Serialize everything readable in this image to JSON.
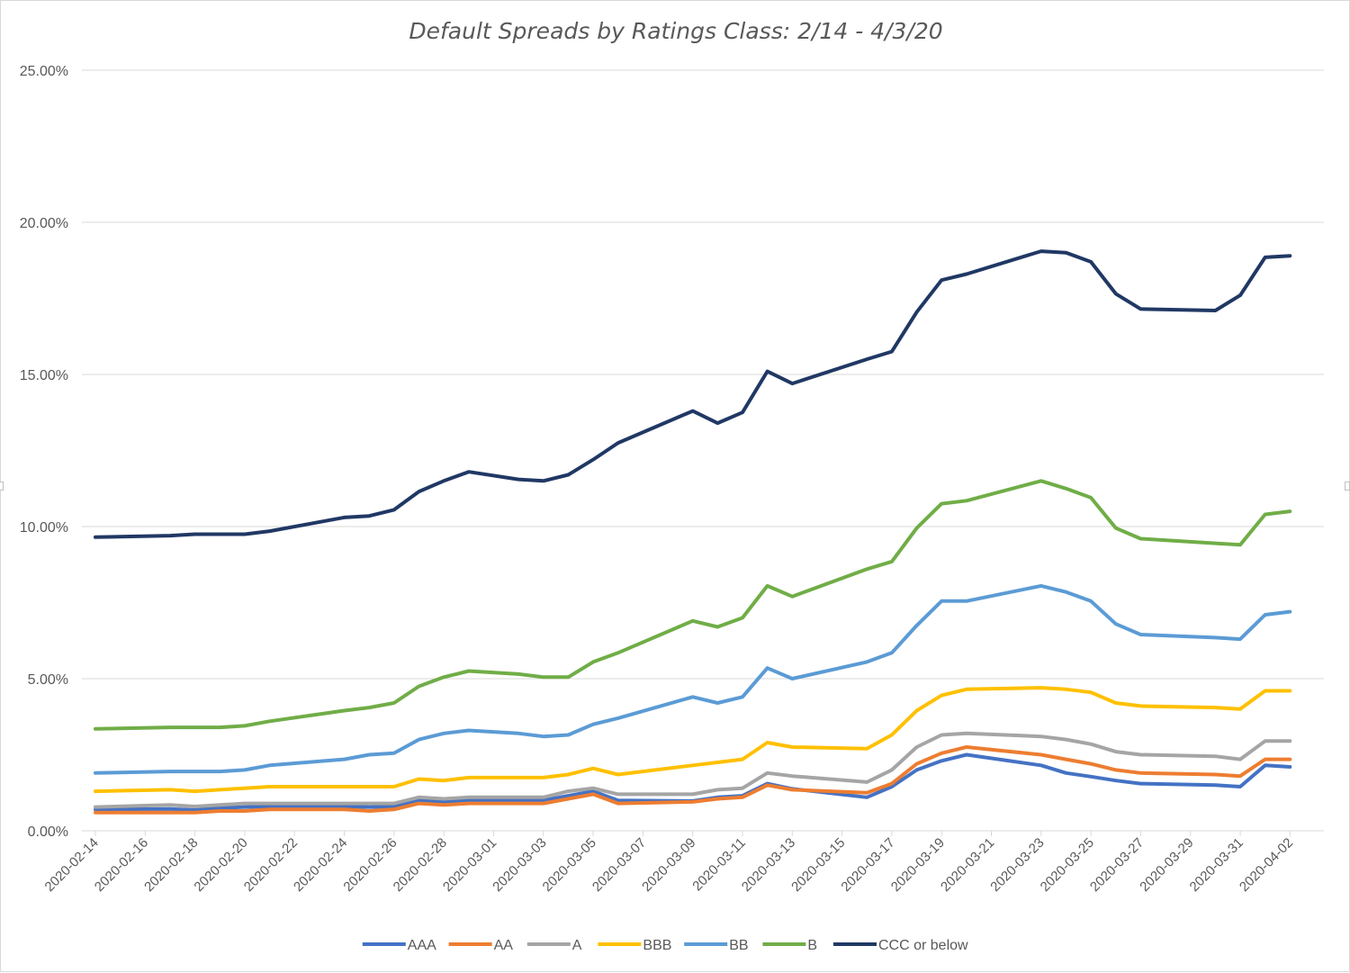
{
  "chart_data": {
    "type": "line",
    "title": "Default Spreads by Ratings Class: 2/14 - 4/3/20",
    "xlabel": "",
    "ylabel": "",
    "ylim": [
      0,
      25
    ],
    "yticks": [
      "0.00%",
      "5.00%",
      "10.00%",
      "15.00%",
      "20.00%",
      "25.00%"
    ],
    "xlim": [
      "2020-02-14",
      "2020-04-03"
    ],
    "xticks": [
      "2020-02-14",
      "2020-02-16",
      "2020-02-18",
      "2020-02-20",
      "2020-02-22",
      "2020-02-24",
      "2020-02-26",
      "2020-02-28",
      "2020-03-01",
      "2020-03-03",
      "2020-03-05",
      "2020-03-07",
      "2020-03-09",
      "2020-03-11",
      "2020-03-13",
      "2020-03-15",
      "2020-03-17",
      "2020-03-19",
      "2020-03-21",
      "2020-03-23",
      "2020-03-25",
      "2020-03-27",
      "2020-03-29",
      "2020-03-31",
      "2020-04-02"
    ],
    "grid": true,
    "legend_position": "bottom",
    "x": [
      "2020-02-14",
      "2020-02-17",
      "2020-02-18",
      "2020-02-19",
      "2020-02-20",
      "2020-02-21",
      "2020-02-24",
      "2020-02-25",
      "2020-02-26",
      "2020-02-27",
      "2020-02-28",
      "2020-02-29",
      "2020-03-02",
      "2020-03-03",
      "2020-03-04",
      "2020-03-05",
      "2020-03-06",
      "2020-03-09",
      "2020-03-10",
      "2020-03-11",
      "2020-03-12",
      "2020-03-13",
      "2020-03-16",
      "2020-03-17",
      "2020-03-18",
      "2020-03-19",
      "2020-03-20",
      "2020-03-23",
      "2020-03-24",
      "2020-03-25",
      "2020-03-26",
      "2020-03-27",
      "2020-03-30",
      "2020-03-31",
      "2020-04-01",
      "2020-04-02"
    ],
    "series": [
      {
        "name": "AAA",
        "color": "#4472C4",
        "values": [
          0.7,
          0.72,
          0.68,
          0.75,
          0.78,
          0.8,
          0.8,
          0.78,
          0.8,
          1.0,
          0.95,
          1.0,
          1.0,
          1.0,
          1.15,
          1.3,
          1.0,
          0.98,
          1.1,
          1.15,
          1.55,
          1.38,
          1.1,
          1.45,
          2.0,
          2.3,
          2.5,
          2.15,
          1.9,
          1.78,
          1.65,
          1.55,
          1.5,
          1.45,
          2.15,
          2.1
        ]
      },
      {
        "name": "AA",
        "color": "#ED7D31",
        "values": [
          0.6,
          0.6,
          0.6,
          0.65,
          0.65,
          0.7,
          0.7,
          0.65,
          0.7,
          0.9,
          0.85,
          0.9,
          0.9,
          0.9,
          1.05,
          1.2,
          0.9,
          0.95,
          1.05,
          1.1,
          1.5,
          1.35,
          1.25,
          1.55,
          2.2,
          2.55,
          2.75,
          2.5,
          2.35,
          2.2,
          2.0,
          1.9,
          1.85,
          1.8,
          2.35,
          2.35
        ]
      },
      {
        "name": "A",
        "color": "#A5A5A5",
        "values": [
          0.78,
          0.85,
          0.8,
          0.85,
          0.9,
          0.9,
          0.9,
          0.9,
          0.9,
          1.1,
          1.05,
          1.1,
          1.1,
          1.1,
          1.3,
          1.4,
          1.2,
          1.2,
          1.35,
          1.4,
          1.9,
          1.8,
          1.6,
          2.0,
          2.75,
          3.15,
          3.2,
          3.1,
          3.0,
          2.85,
          2.6,
          2.5,
          2.45,
          2.35,
          2.95,
          2.95
        ]
      },
      {
        "name": "BBB",
        "color": "#FFC000",
        "values": [
          1.3,
          1.35,
          1.3,
          1.35,
          1.4,
          1.45,
          1.45,
          1.45,
          1.45,
          1.7,
          1.65,
          1.75,
          1.75,
          1.75,
          1.85,
          2.05,
          1.85,
          2.15,
          2.25,
          2.35,
          2.9,
          2.75,
          2.7,
          3.15,
          3.95,
          4.45,
          4.65,
          4.7,
          4.65,
          4.55,
          4.2,
          4.1,
          4.05,
          4.0,
          4.6,
          4.6
        ]
      },
      {
        "name": "BB",
        "color": "#5B9BD5",
        "values": [
          1.9,
          1.95,
          1.95,
          1.95,
          2.0,
          2.15,
          2.35,
          2.5,
          2.55,
          3.0,
          3.2,
          3.3,
          3.2,
          3.1,
          3.15,
          3.5,
          3.7,
          4.4,
          4.2,
          4.4,
          5.35,
          5.0,
          5.55,
          5.85,
          6.75,
          7.55,
          7.55,
          8.05,
          7.85,
          7.55,
          6.8,
          6.45,
          6.35,
          6.3,
          7.1,
          7.2
        ]
      },
      {
        "name": "B",
        "color": "#70AD47",
        "values": [
          3.35,
          3.4,
          3.4,
          3.4,
          3.45,
          3.6,
          3.95,
          4.05,
          4.2,
          4.75,
          5.05,
          5.25,
          5.15,
          5.05,
          5.05,
          5.55,
          5.85,
          6.9,
          6.7,
          7.0,
          8.05,
          7.7,
          8.6,
          8.85,
          9.95,
          10.75,
          10.85,
          11.5,
          11.25,
          10.95,
          9.95,
          9.6,
          9.45,
          9.4,
          10.4,
          10.5
        ]
      },
      {
        "name": "CCC or below",
        "color": "#203864",
        "values": [
          9.65,
          9.7,
          9.75,
          9.75,
          9.75,
          9.85,
          10.3,
          10.35,
          10.55,
          11.15,
          11.5,
          11.8,
          11.55,
          11.5,
          11.7,
          12.2,
          12.75,
          13.8,
          13.4,
          13.75,
          15.1,
          14.7,
          15.5,
          15.75,
          17.05,
          18.1,
          18.3,
          19.05,
          19.0,
          18.7,
          17.65,
          17.15,
          17.1,
          17.6,
          18.85,
          18.9
        ]
      }
    ]
  }
}
